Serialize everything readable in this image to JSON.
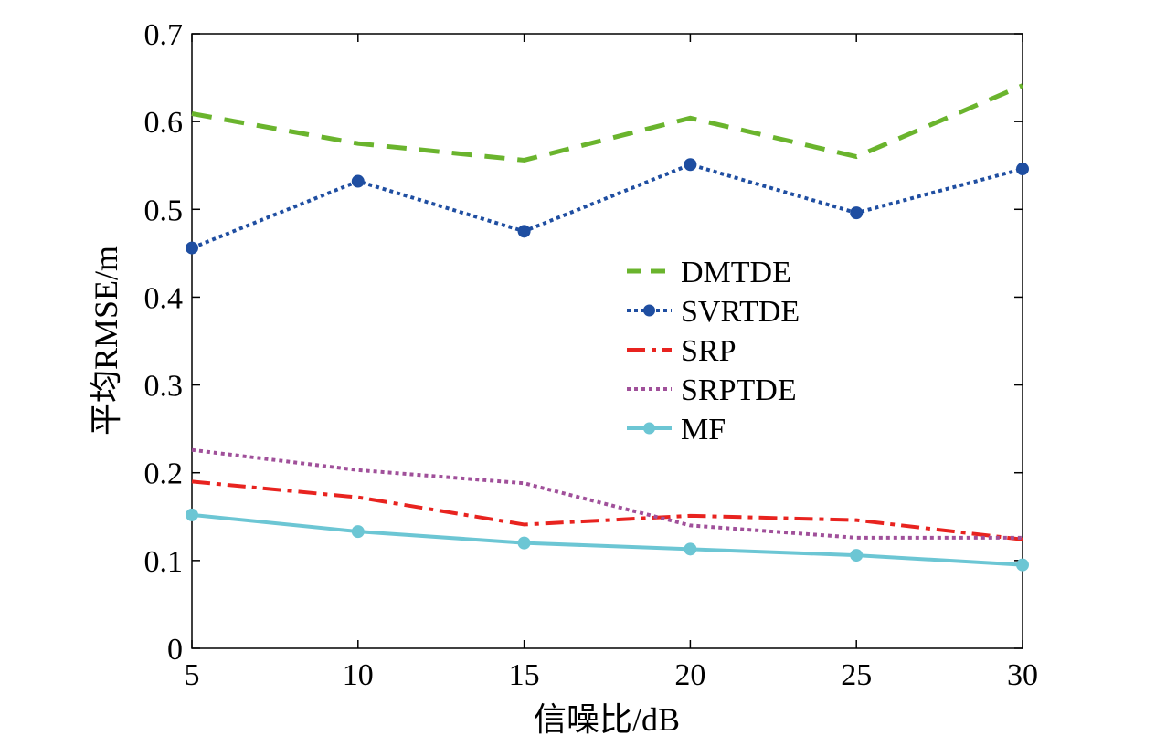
{
  "chart_data": {
    "type": "line",
    "title": "",
    "xlabel": "信噪比/dB",
    "ylabel": "平均RMSE/m",
    "x": [
      5,
      10,
      15,
      20,
      25,
      30
    ],
    "xticks": [
      "5",
      "10",
      "15",
      "20",
      "25",
      "30"
    ],
    "yticks": [
      "0",
      "0.1",
      "0.2",
      "0.3",
      "0.4",
      "0.5",
      "0.6",
      "0.7"
    ],
    "xlim": [
      5,
      30
    ],
    "ylim": [
      0,
      0.7
    ],
    "grid": false,
    "legend_position": "center-right",
    "series": [
      {
        "name": "DMTDE",
        "values": [
          0.609,
          0.575,
          0.556,
          0.604,
          0.56,
          0.641
        ],
        "color": "#6ab42d",
        "style": "dashed",
        "marker": "none"
      },
      {
        "name": "SVRTDE",
        "values": [
          0.456,
          0.532,
          0.475,
          0.551,
          0.496,
          0.546
        ],
        "color": "#1f4ea1",
        "style": "dotted",
        "marker": "circle"
      },
      {
        "name": "SRP",
        "values": [
          0.19,
          0.172,
          0.141,
          0.151,
          0.146,
          0.124
        ],
        "color": "#e8231f",
        "style": "dashdot",
        "marker": "none"
      },
      {
        "name": "SRPTDE",
        "values": [
          0.226,
          0.203,
          0.188,
          0.14,
          0.126,
          0.126
        ],
        "color": "#a0509a",
        "style": "dotted",
        "marker": "none"
      },
      {
        "name": "MF",
        "values": [
          0.152,
          0.133,
          0.12,
          0.113,
          0.106,
          0.095
        ],
        "color": "#6cc6d4",
        "style": "solid",
        "marker": "circle"
      }
    ]
  }
}
